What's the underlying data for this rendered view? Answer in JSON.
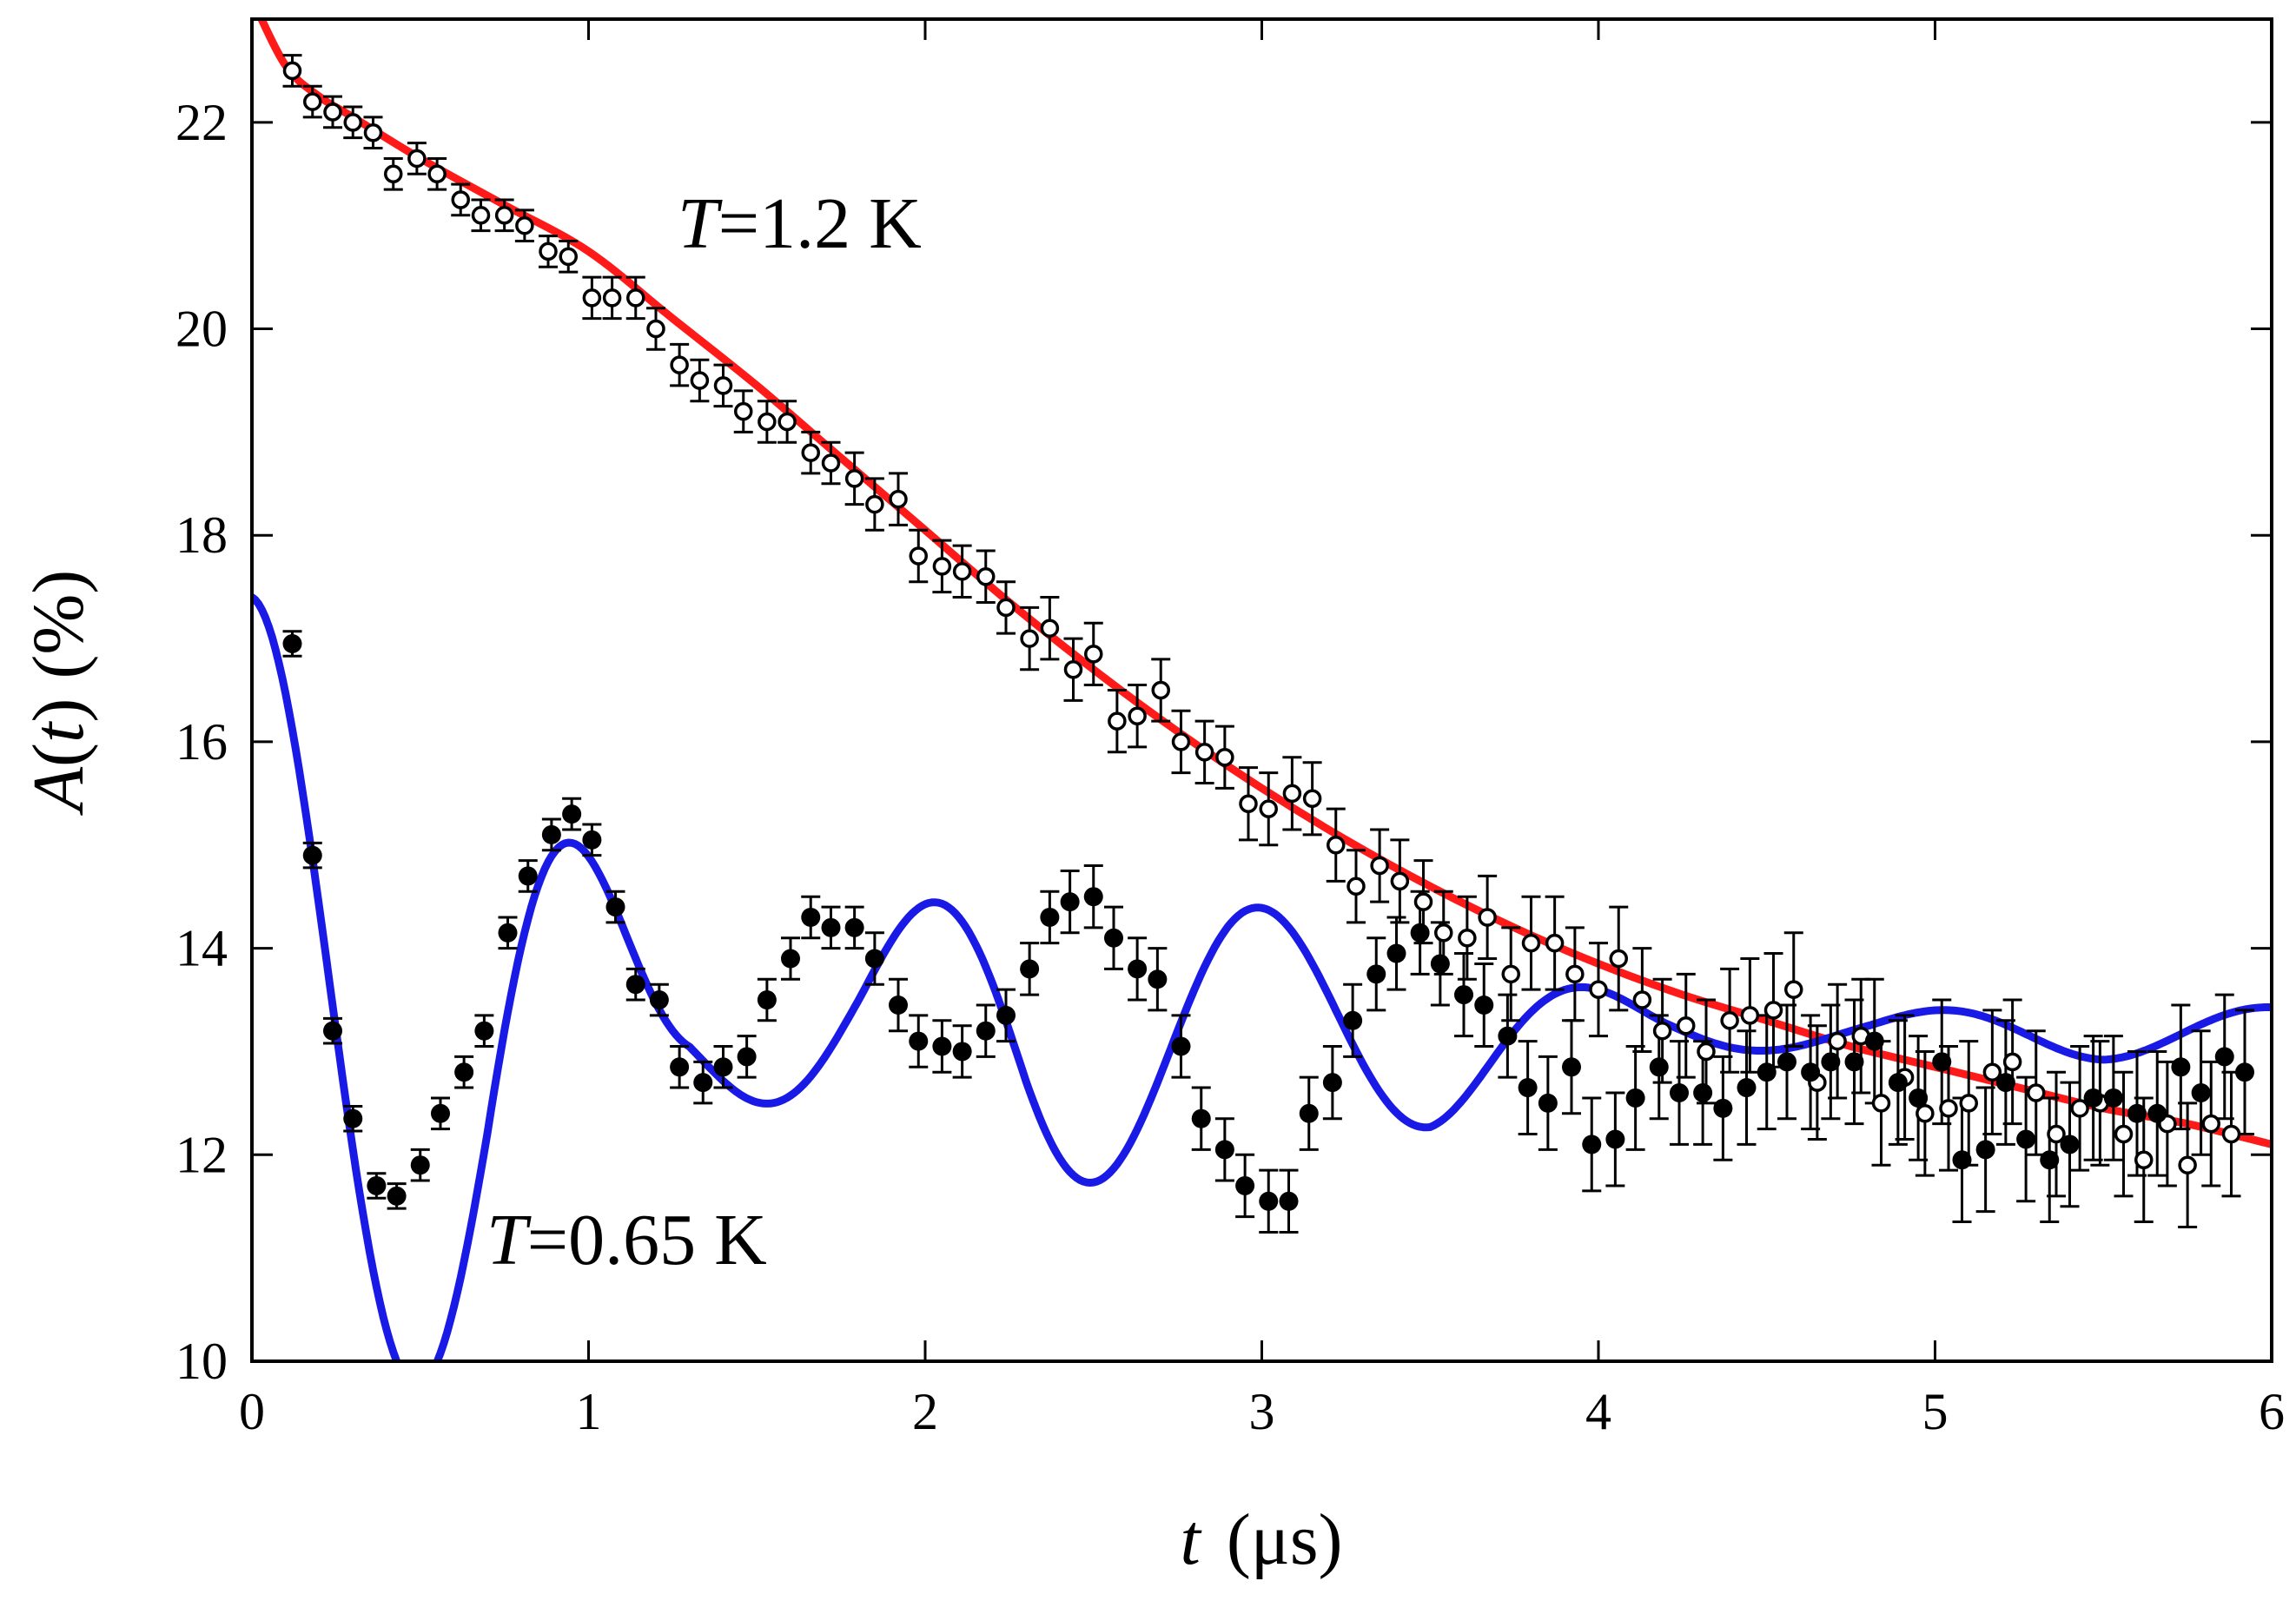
{
  "chart_data": {
    "type": "scatter",
    "title": "",
    "xlabel": {
      "var": "t",
      "unit": "(μs)"
    },
    "ylabel": {
      "var": "A",
      "arg": "t",
      "unit": "(%)"
    },
    "xlim": [
      0,
      6
    ],
    "ylim": [
      10,
      23
    ],
    "xticks": [
      0,
      1,
      2,
      3,
      4,
      5,
      6
    ],
    "yticks": [
      10,
      12,
      14,
      16,
      18,
      20,
      22
    ],
    "xtick_labels": [
      "0",
      "1",
      "2",
      "3",
      "4",
      "5",
      "6"
    ],
    "ytick_labels": [
      "10",
      "12",
      "14",
      "16",
      "18",
      "20",
      "22"
    ],
    "grid": false,
    "annotations": [
      {
        "name": "annotation-T-high",
        "var": "T",
        "value": "=1.2 K",
        "series": "T=1.2 K"
      },
      {
        "name": "annotation-T-low",
        "var": "T",
        "value": "=0.65 K",
        "series": "T=0.65 K"
      }
    ],
    "series": [
      {
        "name": "T=1.2 K",
        "marker": "open-circle",
        "color": "#000000",
        "fit_color": "#ff1a1a",
        "x": [
          0.12,
          0.18,
          0.24,
          0.3,
          0.36,
          0.42,
          0.49,
          0.55,
          0.62,
          0.68,
          0.75,
          0.81,
          0.88,
          0.94,
          1.01,
          1.07,
          1.14,
          1.2,
          1.27,
          1.33,
          1.4,
          1.46,
          1.53,
          1.59,
          1.66,
          1.72,
          1.79,
          1.85,
          1.92,
          1.98,
          2.05,
          2.11,
          2.18,
          2.24,
          2.31,
          2.37,
          2.44,
          2.5,
          2.57,
          2.63,
          2.7,
          2.76,
          2.83,
          2.89,
          2.96,
          3.02,
          3.09,
          3.15,
          3.22,
          3.28,
          3.35,
          3.41,
          3.48,
          3.54,
          3.61,
          3.67,
          3.74,
          3.8,
          3.87,
          3.93,
          4.0,
          4.06,
          4.13,
          4.19,
          4.26,
          4.32,
          4.39,
          4.45,
          4.52,
          4.58,
          4.65,
          4.71,
          4.78,
          4.84,
          4.91,
          4.97,
          5.04,
          5.1,
          5.17,
          5.23,
          5.3,
          5.36,
          5.43,
          5.49,
          5.56,
          5.62,
          5.69,
          5.75,
          5.82,
          5.88
        ],
        "y": [
          22.5,
          22.2,
          22.1,
          22.0,
          21.9,
          21.5,
          21.65,
          21.5,
          21.25,
          21.1,
          21.1,
          21.0,
          20.75,
          20.7,
          20.3,
          20.3,
          20.3,
          20.0,
          19.65,
          19.5,
          19.45,
          19.2,
          19.1,
          19.1,
          18.8,
          18.7,
          18.55,
          18.3,
          18.35,
          17.8,
          17.7,
          17.65,
          17.6,
          17.3,
          17.0,
          17.1,
          16.7,
          16.85,
          16.2,
          16.25,
          16.5,
          16.0,
          15.9,
          15.85,
          15.4,
          15.35,
          15.5,
          15.45,
          15.0,
          14.6,
          14.8,
          14.65,
          14.45,
          14.15,
          14.1,
          14.3,
          13.75,
          14.05,
          14.05,
          13.75,
          13.6,
          13.9,
          13.5,
          13.2,
          13.25,
          13.0,
          13.3,
          13.35,
          13.4,
          13.6,
          12.7,
          13.1,
          13.15,
          12.5,
          12.75,
          12.4,
          12.45,
          12.5,
          12.8,
          12.9,
          12.6,
          12.2,
          12.45,
          12.5,
          12.2,
          11.95,
          12.3,
          11.9,
          12.3,
          12.2
        ],
        "err": [
          0.15,
          0.15,
          0.15,
          0.15,
          0.15,
          0.15,
          0.15,
          0.15,
          0.15,
          0.15,
          0.15,
          0.15,
          0.15,
          0.15,
          0.2,
          0.2,
          0.2,
          0.2,
          0.2,
          0.2,
          0.2,
          0.2,
          0.2,
          0.2,
          0.2,
          0.2,
          0.25,
          0.25,
          0.25,
          0.25,
          0.25,
          0.25,
          0.25,
          0.25,
          0.3,
          0.3,
          0.3,
          0.3,
          0.3,
          0.3,
          0.3,
          0.3,
          0.3,
          0.3,
          0.35,
          0.35,
          0.35,
          0.35,
          0.35,
          0.35,
          0.35,
          0.4,
          0.4,
          0.4,
          0.4,
          0.4,
          0.45,
          0.45,
          0.45,
          0.45,
          0.45,
          0.5,
          0.5,
          0.5,
          0.5,
          0.5,
          0.5,
          0.55,
          0.55,
          0.55,
          0.55,
          0.55,
          0.55,
          0.6,
          0.6,
          0.6,
          0.6,
          0.6,
          0.6,
          0.6,
          0.6,
          0.6,
          0.6,
          0.6,
          0.6,
          0.6,
          0.6,
          0.6,
          0.6,
          0.6
        ],
        "fit": {
          "x": [
            0,
            0.1,
            0.2,
            0.3,
            0.5,
            0.75,
            1.0,
            1.25,
            1.5,
            1.75,
            2.0,
            2.25,
            2.5,
            2.75,
            3.0,
            3.25,
            3.5,
            3.75,
            4.0,
            4.25,
            4.5,
            4.75,
            5.0,
            5.25,
            5.5,
            5.75,
            6.0
          ],
          "y": [
            23.2,
            22.55,
            22.25,
            22.05,
            21.65,
            21.2,
            20.75,
            20.1,
            19.45,
            18.75,
            18.05,
            17.35,
            16.7,
            16.1,
            15.55,
            15.05,
            14.6,
            14.2,
            13.85,
            13.55,
            13.3,
            13.05,
            12.85,
            12.65,
            12.45,
            12.3,
            12.1
          ]
        }
      },
      {
        "name": "T=0.65 K",
        "marker": "filled-circle",
        "color": "#000000",
        "fit_color": "#1a1ae6",
        "x": [
          0.12,
          0.18,
          0.24,
          0.3,
          0.37,
          0.43,
          0.5,
          0.56,
          0.63,
          0.69,
          0.76,
          0.82,
          0.89,
          0.95,
          1.01,
          1.08,
          1.14,
          1.21,
          1.27,
          1.34,
          1.4,
          1.47,
          1.53,
          1.6,
          1.66,
          1.72,
          1.79,
          1.85,
          1.92,
          1.98,
          2.05,
          2.11,
          2.18,
          2.24,
          2.31,
          2.37,
          2.43,
          2.5,
          2.56,
          2.63,
          2.69,
          2.76,
          2.82,
          2.89,
          2.95,
          3.02,
          3.08,
          3.14,
          3.21,
          3.27,
          3.34,
          3.4,
          3.47,
          3.53,
          3.6,
          3.66,
          3.73,
          3.79,
          3.85,
          3.92,
          3.98,
          4.05,
          4.11,
          4.18,
          4.24,
          4.31,
          4.37,
          4.44,
          4.5,
          4.56,
          4.63,
          4.69,
          4.76,
          4.82,
          4.89,
          4.95,
          5.02,
          5.08,
          5.15,
          5.21,
          5.27,
          5.34,
          5.4,
          5.47,
          5.53,
          5.6,
          5.66,
          5.73,
          5.79,
          5.86,
          5.92
        ],
        "y": [
          16.95,
          14.9,
          13.2,
          12.35,
          11.7,
          11.6,
          11.9,
          12.4,
          12.8,
          13.2,
          14.15,
          14.7,
          15.1,
          15.3,
          15.05,
          14.4,
          13.65,
          13.5,
          12.85,
          12.7,
          12.85,
          12.95,
          13.5,
          13.9,
          14.3,
          14.2,
          14.2,
          13.9,
          13.45,
          13.1,
          13.05,
          13.0,
          13.2,
          13.35,
          13.8,
          14.3,
          14.45,
          14.5,
          14.1,
          13.8,
          13.7,
          13.05,
          12.35,
          12.05,
          11.7,
          11.55,
          11.55,
          12.4,
          12.7,
          13.3,
          13.75,
          13.95,
          14.15,
          13.85,
          13.55,
          13.45,
          13.15,
          12.65,
          12.5,
          12.85,
          12.1,
          12.15,
          12.55,
          12.85,
          12.6,
          12.6,
          12.45,
          12.65,
          12.8,
          12.9,
          12.8,
          12.9,
          12.9,
          13.1,
          12.7,
          12.55,
          12.9,
          11.95,
          12.05,
          12.7,
          12.15,
          11.95,
          12.1,
          12.55,
          12.55,
          12.4,
          12.4,
          12.85,
          12.6,
          12.95,
          12.8
        ],
        "err": [
          0.12,
          0.12,
          0.12,
          0.12,
          0.12,
          0.12,
          0.15,
          0.15,
          0.15,
          0.15,
          0.15,
          0.15,
          0.15,
          0.15,
          0.15,
          0.15,
          0.15,
          0.15,
          0.2,
          0.2,
          0.2,
          0.2,
          0.2,
          0.2,
          0.2,
          0.2,
          0.2,
          0.25,
          0.25,
          0.25,
          0.25,
          0.25,
          0.25,
          0.25,
          0.25,
          0.25,
          0.3,
          0.3,
          0.3,
          0.3,
          0.3,
          0.3,
          0.3,
          0.3,
          0.3,
          0.3,
          0.3,
          0.35,
          0.35,
          0.35,
          0.35,
          0.35,
          0.4,
          0.4,
          0.4,
          0.4,
          0.4,
          0.45,
          0.45,
          0.45,
          0.45,
          0.45,
          0.5,
          0.5,
          0.5,
          0.5,
          0.5,
          0.55,
          0.55,
          0.55,
          0.55,
          0.55,
          0.6,
          0.6,
          0.6,
          0.6,
          0.6,
          0.6,
          0.6,
          0.6,
          0.6,
          0.6,
          0.6,
          0.6,
          0.6,
          0.6,
          0.6,
          0.6,
          0.6,
          0.6,
          0.6
        ],
        "fit": {
          "amp0": 17.4,
          "baseline": 13.2,
          "decay_per_us": 0.4,
          "period_us": 1.0,
          "beat_env": [
            [
              0,
              1.0
            ],
            [
              0.7,
              1.0
            ],
            [
              1.3,
              0.2
            ],
            [
              1.8,
              0.45
            ],
            [
              2.3,
              0.95
            ],
            [
              2.9,
              0.95
            ],
            [
              3.5,
              0.9
            ],
            [
              4.2,
              0.3
            ],
            [
              4.8,
              0.25
            ],
            [
              5.5,
              0.6
            ],
            [
              6.0,
              0.6
            ]
          ]
        }
      }
    ]
  }
}
